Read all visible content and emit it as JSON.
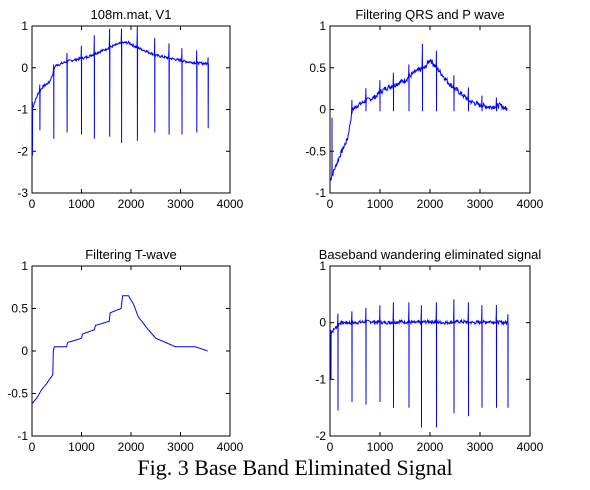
{
  "caption": "Fig. 3 Base Band Eliminated Signal",
  "colors": {
    "signal": "#0000ff",
    "axes": "#000000"
  },
  "chart_data": [
    {
      "type": "line",
      "title": "108m.mat, V1",
      "xlim": [
        0,
        4000
      ],
      "ylim": [
        -3,
        1
      ],
      "xticks": [
        0,
        1000,
        2000,
        3000,
        4000
      ],
      "yticks": [
        -3,
        -2,
        -1,
        0,
        1
      ],
      "baseline": [
        [
          0,
          -1.0
        ],
        [
          60,
          -0.8
        ],
        [
          130,
          -0.6
        ],
        [
          220,
          -0.45
        ],
        [
          350,
          -0.35
        ],
        [
          420,
          -0.15
        ],
        [
          470,
          0.05
        ],
        [
          600,
          0.1
        ],
        [
          700,
          0.15
        ],
        [
          900,
          0.2
        ],
        [
          1100,
          0.25
        ],
        [
          1300,
          0.35
        ],
        [
          1500,
          0.45
        ],
        [
          1700,
          0.55
        ],
        [
          1850,
          0.6
        ],
        [
          1950,
          0.6
        ],
        [
          2100,
          0.5
        ],
        [
          2300,
          0.4
        ],
        [
          2500,
          0.3
        ],
        [
          2700,
          0.25
        ],
        [
          2900,
          0.2
        ],
        [
          3100,
          0.15
        ],
        [
          3300,
          0.12
        ],
        [
          3500,
          0.1
        ],
        [
          3560,
          0.1
        ]
      ],
      "peaks": [
        {
          "x": 10,
          "up": 0.15,
          "down": -2.1
        },
        {
          "x": 160,
          "up": 0.15,
          "down": -1.5
        },
        {
          "x": 440,
          "up": 0.15,
          "down": -1.7
        },
        {
          "x": 710,
          "up": 0.2,
          "down": -1.55
        },
        {
          "x": 1000,
          "up": 0.3,
          "down": -1.6
        },
        {
          "x": 1260,
          "up": 0.45,
          "down": -1.7
        },
        {
          "x": 1570,
          "up": 0.45,
          "down": -1.65
        },
        {
          "x": 1810,
          "up": 0.35,
          "down": -1.8
        },
        {
          "x": 2130,
          "up": 0.5,
          "down": -1.75
        },
        {
          "x": 2480,
          "up": 0.4,
          "down": -1.55
        },
        {
          "x": 2770,
          "up": 0.35,
          "down": -1.6
        },
        {
          "x": 3030,
          "up": 0.3,
          "down": -1.6
        },
        {
          "x": 3330,
          "up": 0.3,
          "down": -1.55
        },
        {
          "x": 3560,
          "up": 0.15,
          "down": -1.45
        }
      ]
    },
    {
      "type": "line",
      "title": "Filtering QRS and P wave",
      "xlim": [
        0,
        4000
      ],
      "ylim": [
        -1,
        1
      ],
      "xticks": [
        0,
        1000,
        2000,
        3000,
        4000
      ],
      "yticks": [
        -1,
        -0.5,
        0,
        0.5,
        1
      ],
      "baseline": [
        [
          0,
          -0.85
        ],
        [
          100,
          -0.7
        ],
        [
          200,
          -0.55
        ],
        [
          350,
          -0.35
        ],
        [
          450,
          0.0
        ],
        [
          550,
          0.05
        ],
        [
          700,
          0.1
        ],
        [
          900,
          0.15
        ],
        [
          1100,
          0.25
        ],
        [
          1300,
          0.3
        ],
        [
          1500,
          0.35
        ],
        [
          1700,
          0.45
        ],
        [
          1900,
          0.5
        ],
        [
          2000,
          0.6
        ],
        [
          2200,
          0.45
        ],
        [
          2400,
          0.3
        ],
        [
          2600,
          0.2
        ],
        [
          2800,
          0.1
        ],
        [
          3000,
          0.05
        ],
        [
          3200,
          0.03
        ],
        [
          3400,
          0.05
        ],
        [
          3550,
          0.0
        ]
      ],
      "peaks": [
        {
          "x": 40,
          "up": 0.0,
          "down": -0.1
        },
        {
          "x": 440,
          "up": 0.15,
          "down": -0.02
        },
        {
          "x": 720,
          "up": 0.15,
          "down": -0.02
        },
        {
          "x": 1000,
          "up": 0.15,
          "down": -0.02
        },
        {
          "x": 1270,
          "up": 0.15,
          "down": -0.02
        },
        {
          "x": 1580,
          "up": 0.15,
          "down": -0.02
        },
        {
          "x": 1850,
          "up": 0.3,
          "down": -0.02
        },
        {
          "x": 2130,
          "up": 0.2,
          "down": -0.02
        },
        {
          "x": 2480,
          "up": 0.15,
          "down": -0.02
        },
        {
          "x": 2770,
          "up": 0.15,
          "down": -0.02
        },
        {
          "x": 3040,
          "up": 0.12,
          "down": -0.02
        },
        {
          "x": 3330,
          "up": 0.1,
          "down": -0.02
        }
      ]
    },
    {
      "type": "line",
      "title": "Filtering T-wave",
      "xlim": [
        0,
        4000
      ],
      "ylim": [
        -1,
        1
      ],
      "xticks": [
        0,
        1000,
        2000,
        3000,
        4000
      ],
      "yticks": [
        -1,
        -0.5,
        0,
        0.5,
        1
      ],
      "baseline": [
        [
          0,
          -0.62
        ],
        [
          100,
          -0.55
        ],
        [
          200,
          -0.45
        ],
        [
          300,
          -0.38
        ],
        [
          420,
          -0.28
        ],
        [
          430,
          0.0
        ],
        [
          450,
          0.05
        ],
        [
          700,
          0.05
        ],
        [
          720,
          0.1
        ],
        [
          1000,
          0.15
        ],
        [
          1020,
          0.2
        ],
        [
          1260,
          0.25
        ],
        [
          1280,
          0.3
        ],
        [
          1560,
          0.35
        ],
        [
          1580,
          0.45
        ],
        [
          1800,
          0.5
        ],
        [
          1830,
          0.65
        ],
        [
          1950,
          0.65
        ],
        [
          2050,
          0.55
        ],
        [
          2150,
          0.4
        ],
        [
          2350,
          0.25
        ],
        [
          2500,
          0.15
        ],
        [
          2700,
          0.1
        ],
        [
          2900,
          0.05
        ],
        [
          3300,
          0.05
        ],
        [
          3450,
          0.02
        ],
        [
          3550,
          0.0
        ]
      ],
      "peaks": []
    },
    {
      "type": "line",
      "title": "Baseband wandering eliminated signal",
      "xlim": [
        0,
        4000
      ],
      "ylim": [
        -2,
        1
      ],
      "xticks": [
        0,
        1000,
        2000,
        3000,
        4000
      ],
      "yticks": [
        -2,
        -1,
        0,
        1
      ],
      "baseline": [
        [
          0,
          -0.2
        ],
        [
          100,
          -0.1
        ],
        [
          200,
          0.0
        ],
        [
          500,
          0.0
        ],
        [
          800,
          0.02
        ],
        [
          1100,
          0.0
        ],
        [
          1400,
          0.02
        ],
        [
          1700,
          0.0
        ],
        [
          2000,
          0.02
        ],
        [
          2300,
          0.0
        ],
        [
          2600,
          0.02
        ],
        [
          2900,
          0.0
        ],
        [
          3200,
          0.02
        ],
        [
          3500,
          0.0
        ],
        [
          3560,
          0.0
        ]
      ],
      "peaks": [
        {
          "x": 20,
          "up": 0.05,
          "down": -1.0
        },
        {
          "x": 160,
          "up": 0.2,
          "down": -1.55
        },
        {
          "x": 440,
          "up": 0.2,
          "down": -1.4
        },
        {
          "x": 720,
          "up": 0.25,
          "down": -1.45
        },
        {
          "x": 1000,
          "up": 0.3,
          "down": -1.4
        },
        {
          "x": 1270,
          "up": 0.35,
          "down": -1.5
        },
        {
          "x": 1580,
          "up": 0.35,
          "down": -1.5
        },
        {
          "x": 1830,
          "up": 0.3,
          "down": -1.85
        },
        {
          "x": 2130,
          "up": 0.35,
          "down": -1.85
        },
        {
          "x": 2480,
          "up": 0.4,
          "down": -1.6
        },
        {
          "x": 2770,
          "up": 0.35,
          "down": -1.65
        },
        {
          "x": 3040,
          "up": 0.3,
          "down": -1.5
        },
        {
          "x": 3330,
          "up": 0.3,
          "down": -1.5
        },
        {
          "x": 3560,
          "up": 0.15,
          "down": -1.5
        }
      ]
    }
  ]
}
